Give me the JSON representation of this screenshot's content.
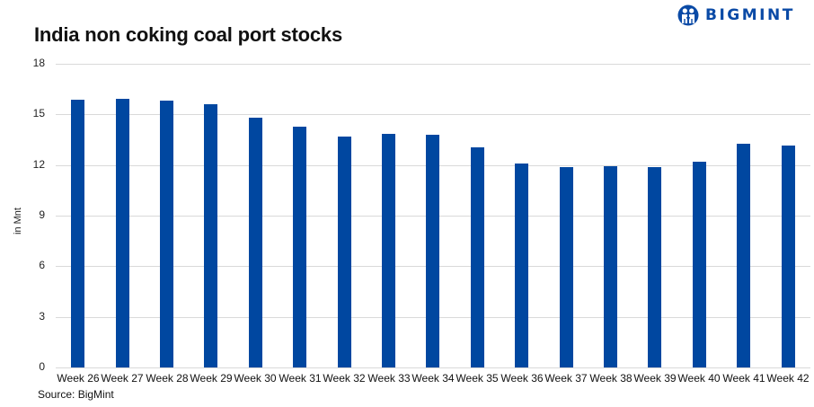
{
  "header": {
    "title": "India non coking coal port stocks",
    "logo_text": "BIGMINT",
    "logo_icon": "bigmint-people-icon",
    "brand_color": "#0a4aa6"
  },
  "footer": {
    "source": "Source: BigMint"
  },
  "chart_data": {
    "type": "bar",
    "title": "India non coking coal port stocks",
    "xlabel": "",
    "ylabel": "in Mnt",
    "ylim": [
      0,
      18
    ],
    "yticks": [
      0,
      3,
      6,
      9,
      12,
      15,
      18
    ],
    "grid": true,
    "legend": null,
    "bar_color": "#0047a0",
    "categories": [
      "Week 26",
      "Week 27",
      "Week 28",
      "Week 29",
      "Week 30",
      "Week 31",
      "Week 32",
      "Week 33",
      "Week 34",
      "Week 35",
      "Week 36",
      "Week 37",
      "Week 38",
      "Week 39",
      "Week 40",
      "Week 41",
      "Week 42"
    ],
    "values": [
      15.87,
      15.9,
      15.84,
      15.6,
      14.8,
      14.27,
      13.68,
      13.84,
      13.79,
      13.05,
      12.09,
      11.87,
      11.93,
      11.85,
      12.22,
      13.26,
      13.18
    ],
    "source": "Source: BigMint"
  }
}
